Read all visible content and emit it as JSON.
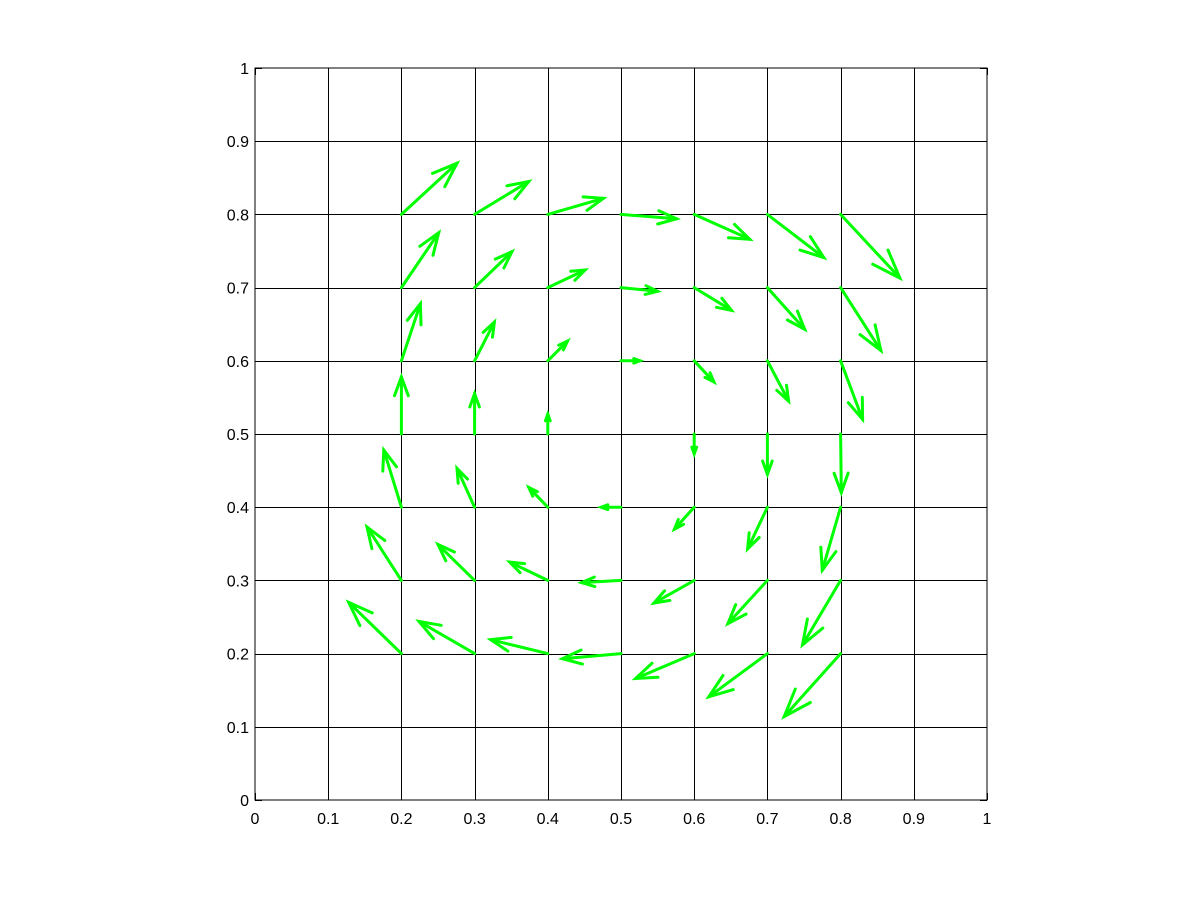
{
  "chart_data": {
    "type": "quiver",
    "title": "",
    "xlabel": "",
    "ylabel": "",
    "xlim": [
      0,
      1
    ],
    "ylim": [
      0,
      1
    ],
    "grid": true,
    "xticks": [
      "0",
      "0.1",
      "0.2",
      "0.3",
      "0.4",
      "0.5",
      "0.6",
      "0.7",
      "0.8",
      "0.9",
      "1"
    ],
    "yticks": [
      "0",
      "0.1",
      "0.2",
      "0.3",
      "0.4",
      "0.5",
      "0.6",
      "0.7",
      "0.8",
      "0.9",
      "1"
    ],
    "arrow_color": "#00ff00",
    "axis_color": "#000000",
    "background": "#ffffff",
    "points": [
      {
        "x": 0.2,
        "y": 0.8,
        "u": 0.076,
        "v": 0.07
      },
      {
        "x": 0.3,
        "y": 0.8,
        "u": 0.074,
        "v": 0.045
      },
      {
        "x": 0.4,
        "y": 0.8,
        "u": 0.076,
        "v": 0.022
      },
      {
        "x": 0.5,
        "y": 0.8,
        "u": 0.076,
        "v": -0.006
      },
      {
        "x": 0.6,
        "y": 0.8,
        "u": 0.076,
        "v": -0.034
      },
      {
        "x": 0.7,
        "y": 0.8,
        "u": 0.077,
        "v": -0.059
      },
      {
        "x": 0.8,
        "y": 0.8,
        "u": 0.081,
        "v": -0.087
      },
      {
        "x": 0.2,
        "y": 0.7,
        "u": 0.051,
        "v": 0.075
      },
      {
        "x": 0.3,
        "y": 0.7,
        "u": 0.051,
        "v": 0.049
      },
      {
        "x": 0.4,
        "y": 0.7,
        "u": 0.051,
        "v": 0.024
      },
      {
        "x": 0.5,
        "y": 0.7,
        "u": 0.05,
        "v": -0.005
      },
      {
        "x": 0.6,
        "y": 0.7,
        "u": 0.051,
        "v": -0.031
      },
      {
        "x": 0.7,
        "y": 0.7,
        "u": 0.051,
        "v": -0.057
      },
      {
        "x": 0.8,
        "y": 0.7,
        "u": 0.055,
        "v": -0.086
      },
      {
        "x": 0.2,
        "y": 0.6,
        "u": 0.026,
        "v": 0.078
      },
      {
        "x": 0.3,
        "y": 0.6,
        "u": 0.027,
        "v": 0.053
      },
      {
        "x": 0.4,
        "y": 0.6,
        "u": 0.027,
        "v": 0.027
      },
      {
        "x": 0.5,
        "y": 0.6,
        "u": 0.026,
        "v": 0.0
      },
      {
        "x": 0.6,
        "y": 0.6,
        "u": 0.027,
        "v": -0.029
      },
      {
        "x": 0.7,
        "y": 0.6,
        "u": 0.029,
        "v": -0.055
      },
      {
        "x": 0.8,
        "y": 0.6,
        "u": 0.03,
        "v": -0.08
      },
      {
        "x": 0.2,
        "y": 0.5,
        "u": 0.0,
        "v": 0.078
      },
      {
        "x": 0.3,
        "y": 0.5,
        "u": 0.0,
        "v": 0.055
      },
      {
        "x": 0.4,
        "y": 0.5,
        "u": 0.0,
        "v": 0.027
      },
      {
        "x": 0.6,
        "y": 0.5,
        "u": 0.0,
        "v": -0.027
      },
      {
        "x": 0.7,
        "y": 0.5,
        "u": 0.0,
        "v": -0.055
      },
      {
        "x": 0.8,
        "y": 0.5,
        "u": 0.001,
        "v": -0.08
      },
      {
        "x": 0.2,
        "y": 0.4,
        "u": -0.024,
        "v": 0.078
      },
      {
        "x": 0.3,
        "y": 0.4,
        "u": -0.024,
        "v": 0.053
      },
      {
        "x": 0.4,
        "y": 0.4,
        "u": -0.026,
        "v": 0.027
      },
      {
        "x": 0.5,
        "y": 0.4,
        "u": -0.027,
        "v": 0.0
      },
      {
        "x": 0.6,
        "y": 0.4,
        "u": -0.027,
        "v": -0.03
      },
      {
        "x": 0.7,
        "y": 0.4,
        "u": -0.027,
        "v": -0.057
      },
      {
        "x": 0.8,
        "y": 0.4,
        "u": -0.025,
        "v": -0.086
      },
      {
        "x": 0.2,
        "y": 0.3,
        "u": -0.047,
        "v": 0.073
      },
      {
        "x": 0.3,
        "y": 0.3,
        "u": -0.05,
        "v": 0.049
      },
      {
        "x": 0.4,
        "y": 0.3,
        "u": -0.052,
        "v": 0.025
      },
      {
        "x": 0.5,
        "y": 0.3,
        "u": -0.054,
        "v": -0.003
      },
      {
        "x": 0.6,
        "y": 0.3,
        "u": -0.055,
        "v": -0.031
      },
      {
        "x": 0.7,
        "y": 0.3,
        "u": -0.054,
        "v": -0.059
      },
      {
        "x": 0.8,
        "y": 0.3,
        "u": -0.052,
        "v": -0.088
      },
      {
        "x": 0.2,
        "y": 0.2,
        "u": -0.072,
        "v": 0.07
      },
      {
        "x": 0.3,
        "y": 0.2,
        "u": -0.076,
        "v": 0.044
      },
      {
        "x": 0.4,
        "y": 0.2,
        "u": -0.078,
        "v": 0.019
      },
      {
        "x": 0.5,
        "y": 0.2,
        "u": -0.08,
        "v": -0.007
      },
      {
        "x": 0.6,
        "y": 0.2,
        "u": -0.08,
        "v": -0.034
      },
      {
        "x": 0.7,
        "y": 0.2,
        "u": -0.08,
        "v": -0.059
      },
      {
        "x": 0.8,
        "y": 0.2,
        "u": -0.077,
        "v": -0.086
      }
    ]
  }
}
